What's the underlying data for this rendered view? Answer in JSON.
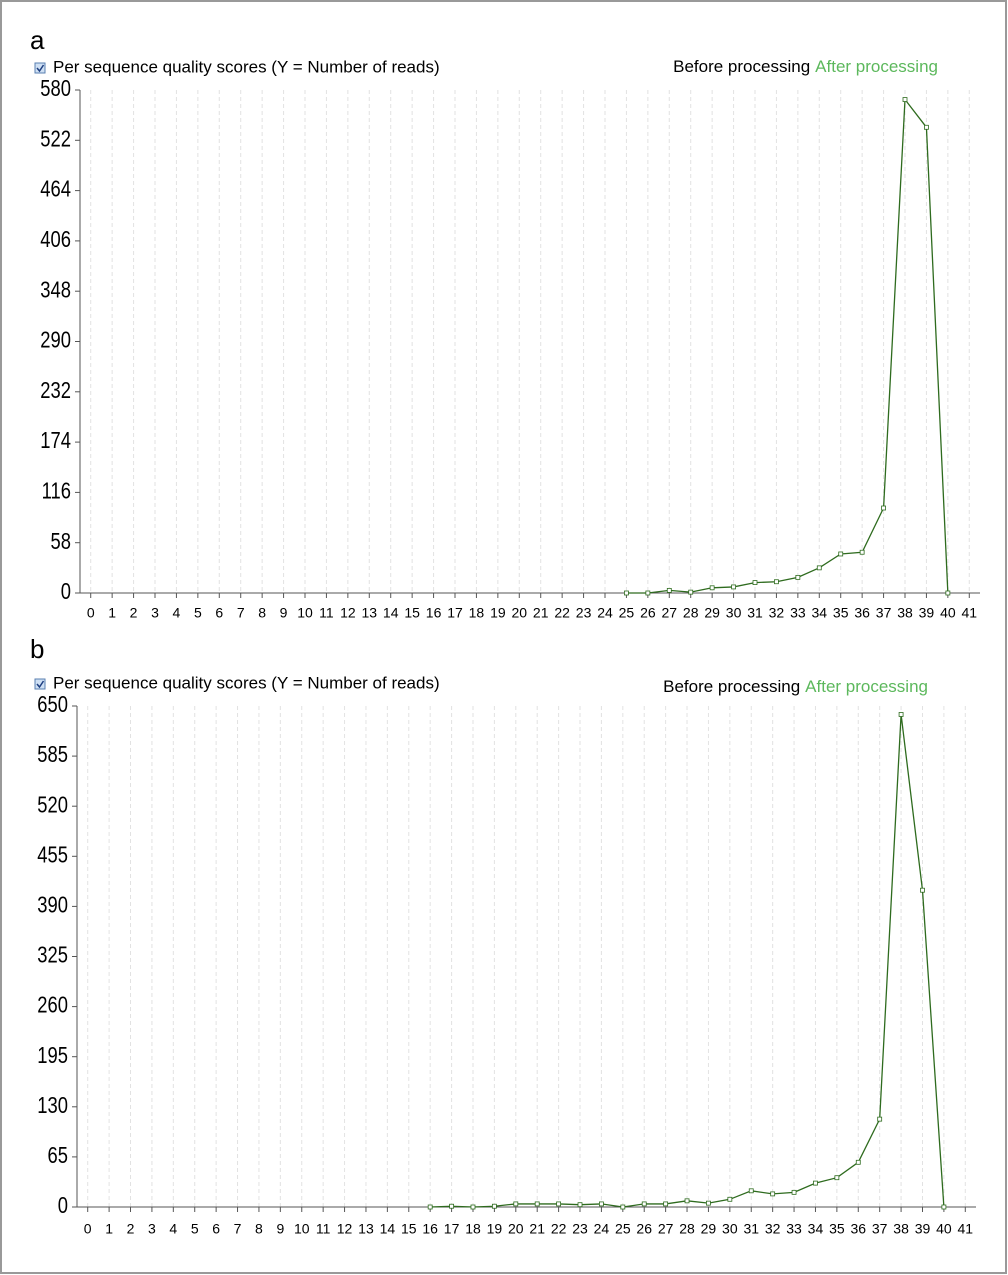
{
  "chart_data": [
    {
      "type": "line",
      "panel": "a",
      "title": "Per sequence quality scores (Y = Number of reads)",
      "x": [
        25,
        26,
        27,
        28,
        29,
        30,
        31,
        32,
        33,
        34,
        35,
        36,
        37,
        38,
        39,
        40
      ],
      "series": [
        {
          "name": "Before processing",
          "color": "#000000"
        },
        {
          "name": "After processing",
          "color": "#5cb85c",
          "line_color": "#2e6b1e",
          "values": [
            0,
            0,
            3,
            1,
            6,
            7,
            12,
            13,
            18,
            29,
            45,
            47,
            98,
            569,
            537,
            0
          ]
        }
      ],
      "xlim": [
        -0.5,
        41.5
      ],
      "xticks": [
        0,
        1,
        2,
        3,
        4,
        5,
        6,
        7,
        8,
        9,
        10,
        11,
        12,
        13,
        14,
        15,
        16,
        17,
        18,
        19,
        20,
        21,
        22,
        23,
        24,
        25,
        26,
        27,
        28,
        29,
        30,
        31,
        32,
        33,
        34,
        35,
        36,
        37,
        38,
        39,
        40,
        41
      ],
      "ylim": [
        0,
        580
      ],
      "yticks": [
        0,
        58,
        116,
        174,
        232,
        290,
        348,
        406,
        464,
        522,
        580
      ],
      "grid": "x"
    },
    {
      "type": "line",
      "panel": "b",
      "title": "Per sequence quality scores (Y = Number of reads)",
      "x": [
        16,
        17,
        18,
        19,
        20,
        21,
        22,
        23,
        24,
        25,
        26,
        27,
        28,
        29,
        30,
        31,
        32,
        33,
        34,
        35,
        36,
        37,
        38,
        39,
        40
      ],
      "series": [
        {
          "name": "Before processing",
          "color": "#000000"
        },
        {
          "name": "After processing",
          "color": "#5cb85c",
          "line_color": "#2e6b1e",
          "values": [
            0,
            1,
            0,
            1,
            4,
            4,
            4,
            3,
            4,
            0,
            4,
            4,
            8,
            5,
            10,
            21,
            17,
            19,
            31,
            38,
            58,
            114,
            639,
            411,
            0
          ]
        }
      ],
      "xlim": [
        -0.5,
        41.5
      ],
      "xticks": [
        0,
        1,
        2,
        3,
        4,
        5,
        6,
        7,
        8,
        9,
        10,
        11,
        12,
        13,
        14,
        15,
        16,
        17,
        18,
        19,
        20,
        21,
        22,
        23,
        24,
        25,
        26,
        27,
        28,
        29,
        30,
        31,
        32,
        33,
        34,
        35,
        36,
        37,
        38,
        39,
        40,
        41
      ],
      "ylim": [
        0,
        650
      ],
      "yticks": [
        0,
        65,
        130,
        195,
        260,
        325,
        390,
        455,
        520,
        585,
        650
      ],
      "grid": "x"
    }
  ]
}
